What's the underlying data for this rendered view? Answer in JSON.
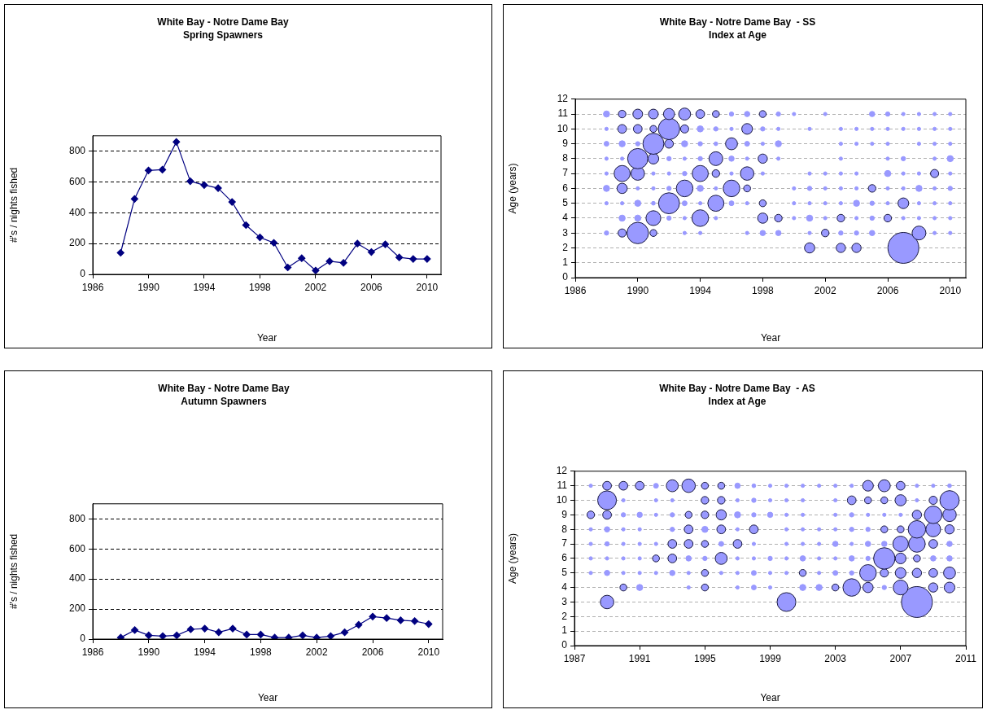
{
  "chart_data": [
    {
      "type": "line",
      "title": "White Bay - Notre Dame Bay",
      "subtitle": "Spring Spawners",
      "xlabel": "Year",
      "ylabel": "#'s / nights fished",
      "marker": "diamond",
      "line_style": "solid",
      "grid": "y",
      "series": [
        {
          "color": "#000080",
          "x": [
            1988,
            1989,
            1990,
            1991,
            1992,
            1993,
            1994,
            1995,
            1996,
            1997,
            1998,
            1999,
            2000,
            2001,
            2002,
            2003,
            2004,
            2005,
            2006,
            2007,
            2008,
            2009,
            2010
          ],
          "values": [
            140,
            490,
            675,
            680,
            860,
            605,
            580,
            560,
            470,
            320,
            240,
            205,
            45,
            105,
            25,
            85,
            75,
            200,
            145,
            195,
            110,
            100,
            100
          ]
        }
      ],
      "xlim": [
        1986,
        2011
      ],
      "xticks": [
        1986,
        1990,
        1994,
        1998,
        2002,
        2006,
        2010
      ],
      "ylim": [
        0,
        900
      ],
      "yticks": [
        0,
        200,
        400,
        600,
        800
      ]
    },
    {
      "type": "bubble",
      "title": "White Bay - Notre Dame Bay  - SS",
      "subtitle": "Index at Age",
      "xlabel": "Year",
      "ylabel": "Age (years)",
      "grid": "y",
      "series": [
        {
          "color": "#9999ff",
          "x": [
            1988,
            1989,
            1990,
            1991,
            1992,
            1993,
            1994,
            1995,
            1996,
            1997,
            1998,
            1999,
            2000,
            2002,
            2005,
            2006,
            2007,
            2008,
            2009,
            2010
          ],
          "values": [
            11,
            11,
            11,
            11,
            11,
            11,
            11,
            11,
            11,
            11,
            11,
            11,
            11,
            11,
            11,
            11,
            11,
            11,
            11,
            11
          ],
          "sizes": [
            0.04,
            0.06,
            0.1,
            0.1,
            0.13,
            0.15,
            0.08,
            0.05,
            0.02,
            0.03,
            0.05,
            0.02,
            0.012,
            0.012,
            0.03,
            0.02,
            0.012,
            0.012,
            0.012,
            0.012
          ]
        },
        {
          "color": "#9999ff",
          "x": [
            1988,
            1989,
            1990,
            1991,
            1992,
            1993,
            1994,
            1995,
            1996,
            1997,
            1998,
            1999,
            2001,
            2003,
            2004,
            2005,
            2006,
            2007,
            2008,
            2009,
            2010
          ],
          "values": [
            10,
            10,
            10,
            10,
            10,
            10,
            10,
            10,
            10,
            10,
            10,
            10,
            10,
            10,
            10,
            10,
            10,
            10,
            10,
            10,
            10
          ],
          "sizes": [
            0.012,
            0.08,
            0.08,
            0.05,
            0.48,
            0.07,
            0.04,
            0.02,
            0.012,
            0.12,
            0.02,
            0.012,
            0.012,
            0.012,
            0.012,
            0.012,
            0.012,
            0.012,
            0.012,
            0.012,
            0.012
          ]
        },
        {
          "color": "#9999ff",
          "x": [
            1988,
            1989,
            1990,
            1991,
            1992,
            1993,
            1994,
            1995,
            1996,
            1997,
            1998,
            1999,
            2003,
            2004,
            2005,
            2006,
            2008,
            2009,
            2010
          ],
          "values": [
            9,
            9,
            9,
            9,
            9,
            9,
            9,
            9,
            9,
            9,
            9,
            9,
            9,
            9,
            9,
            9,
            9,
            9,
            9
          ],
          "sizes": [
            0.025,
            0.04,
            0.02,
            0.46,
            0.08,
            0.04,
            0.02,
            0.015,
            0.15,
            0.025,
            0.012,
            0.04,
            0.012,
            0.012,
            0.012,
            0.012,
            0.012,
            0.012,
            0.012
          ]
        },
        {
          "color": "#9999ff",
          "x": [
            1988,
            1989,
            1990,
            1991,
            1992,
            1993,
            1994,
            1995,
            1996,
            1997,
            1998,
            1999,
            2003,
            2006,
            2007,
            2009,
            2010
          ],
          "values": [
            8,
            8,
            8,
            8,
            8,
            8,
            8,
            8,
            8,
            8,
            8,
            8,
            8,
            8,
            8,
            8,
            8
          ],
          "sizes": [
            0.012,
            0.012,
            0.43,
            0.12,
            0.02,
            0.012,
            0.02,
            0.2,
            0.03,
            0.012,
            0.09,
            0.012,
            0.012,
            0.012,
            0.02,
            0.012,
            0.04
          ]
        },
        {
          "color": "#9999ff",
          "x": [
            1988,
            1989,
            1990,
            1991,
            1992,
            1993,
            1994,
            1995,
            1996,
            1997,
            1998,
            2001,
            2002,
            2003,
            2004,
            2006,
            2007,
            2008,
            2009,
            2010
          ],
          "values": [
            7,
            7,
            7,
            7,
            7,
            7,
            7,
            7,
            7,
            7,
            7,
            7,
            7,
            7,
            7,
            7,
            7,
            7,
            7,
            7
          ],
          "sizes": [
            0.012,
            0.27,
            0.19,
            0.012,
            0.012,
            0.02,
            0.27,
            0.06,
            0.012,
            0.19,
            0.012,
            0.012,
            0.012,
            0.012,
            0.012,
            0.04,
            0.012,
            0.012,
            0.07,
            0.012
          ]
        },
        {
          "color": "#9999ff",
          "x": [
            1988,
            1989,
            1990,
            1991,
            1992,
            1993,
            1994,
            1995,
            1996,
            1997,
            2000,
            2001,
            2002,
            2003,
            2004,
            2005,
            2006,
            2007,
            2008,
            2009,
            2010
          ],
          "values": [
            6,
            6,
            6,
            6,
            6,
            6,
            6,
            6,
            6,
            6,
            6,
            6,
            6,
            6,
            6,
            6,
            6,
            6,
            6,
            6,
            6
          ],
          "sizes": [
            0.04,
            0.11,
            0.012,
            0.012,
            0.02,
            0.29,
            0.04,
            0.012,
            0.29,
            0.05,
            0.012,
            0.02,
            0.012,
            0.012,
            0.012,
            0.06,
            0.012,
            0.012,
            0.04,
            0.012,
            0.02
          ]
        },
        {
          "color": "#9999ff",
          "x": [
            1988,
            1989,
            1990,
            1991,
            1992,
            1993,
            1994,
            1995,
            1996,
            1997,
            1998,
            2000,
            2001,
            2002,
            2003,
            2004,
            2005,
            2006,
            2007,
            2008,
            2009,
            2010
          ],
          "values": [
            5,
            5,
            5,
            5,
            5,
            5,
            5,
            5,
            5,
            5,
            5,
            5,
            5,
            5,
            5,
            5,
            5,
            5,
            5,
            5,
            5,
            5
          ],
          "sizes": [
            0.012,
            0.012,
            0.04,
            0.015,
            0.46,
            0.025,
            0.012,
            0.27,
            0.025,
            0.012,
            0.05,
            0.012,
            0.012,
            0.012,
            0.012,
            0.04,
            0.02,
            0.012,
            0.12,
            0.012,
            0.012,
            0.012
          ]
        },
        {
          "color": "#9999ff",
          "x": [
            1989,
            1990,
            1991,
            1992,
            1993,
            1994,
            1995,
            1998,
            1999,
            2000,
            2001,
            2002,
            2003,
            2004,
            2005,
            2006,
            2007,
            2008,
            2009,
            2010
          ],
          "values": [
            4,
            4,
            4,
            4,
            4,
            4,
            4,
            4,
            4,
            4,
            4,
            4,
            4,
            4,
            4,
            4,
            4,
            4,
            4,
            4
          ],
          "sizes": [
            0.04,
            0.04,
            0.23,
            0.02,
            0.012,
            0.29,
            0.012,
            0.11,
            0.06,
            0.012,
            0.04,
            0.012,
            0.06,
            0.012,
            0.02,
            0.06,
            0.012,
            0.012,
            0.012,
            0.012
          ]
        },
        {
          "color": "#9999ff",
          "x": [
            1988,
            1989,
            1990,
            1991,
            1993,
            1994,
            1997,
            1998,
            1999,
            2001,
            2002,
            2003,
            2004,
            2005,
            2008,
            2009,
            2010
          ],
          "values": [
            3,
            3,
            3,
            3,
            3,
            3,
            3,
            3,
            3,
            3,
            3,
            3,
            3,
            3,
            3,
            3,
            3
          ],
          "sizes": [
            0.02,
            0.07,
            0.48,
            0.05,
            0.012,
            0.012,
            0.012,
            0.03,
            0.03,
            0.012,
            0.06,
            0.02,
            0.02,
            0.03,
            0.2,
            0.012,
            0.012
          ]
        },
        {
          "color": "#9999ff",
          "x": [
            2001,
            2003,
            2004,
            2007
          ],
          "values": [
            2,
            2,
            2,
            2
          ],
          "sizes": [
            0.11,
            0.09,
            0.09,
            1
          ]
        }
      ],
      "xlim": [
        1986,
        2011
      ],
      "xticks": [
        1986,
        1990,
        1994,
        1998,
        2002,
        2006,
        2010
      ],
      "ylim": [
        0,
        12
      ],
      "yticks": [
        0,
        1,
        2,
        3,
        4,
        5,
        6,
        7,
        8,
        9,
        10,
        11,
        12
      ]
    },
    {
      "type": "line",
      "title": "White Bay - Notre Dame Bay",
      "subtitle": "Autumn Spawners",
      "xlabel": "Year",
      "ylabel": "#'s / nights fished",
      "marker": "diamond",
      "line_style": "solid",
      "grid": "y",
      "series": [
        {
          "color": "#000080",
          "x": [
            1988,
            1989,
            1990,
            1991,
            1992,
            1993,
            1994,
            1995,
            1996,
            1997,
            1998,
            1999,
            2000,
            2001,
            2002,
            2003,
            2004,
            2005,
            2006,
            2007,
            2008,
            2009,
            2010
          ],
          "values": [
            10,
            60,
            25,
            20,
            25,
            65,
            70,
            45,
            70,
            30,
            30,
            10,
            10,
            25,
            10,
            20,
            45,
            95,
            150,
            140,
            125,
            120,
            100
          ]
        }
      ],
      "xlim": [
        1986,
        2011
      ],
      "xticks": [
        1986,
        1990,
        1994,
        1998,
        2002,
        2006,
        2010
      ],
      "ylim": [
        0,
        900
      ],
      "yticks": [
        0,
        200,
        400,
        600,
        800
      ]
    },
    {
      "type": "bubble",
      "title": "White Bay - Notre Dame Bay  - AS",
      "subtitle": "Index at Age",
      "xlabel": "Year",
      "ylabel": "Age (years)",
      "grid": "y",
      "series": [
        {
          "color": "#9999ff",
          "x": [
            1988,
            1989,
            1990,
            1991,
            1992,
            1993,
            1994,
            1995,
            1996,
            1997,
            1998,
            1999,
            2000,
            2001,
            2002,
            2003,
            2004,
            2005,
            2006,
            2007,
            2008,
            2009,
            2010
          ],
          "values": [
            11,
            11,
            11,
            11,
            11,
            11,
            11,
            11,
            11,
            11,
            11,
            11,
            11,
            11,
            11,
            11,
            11,
            11,
            11,
            11,
            11,
            11,
            11
          ],
          "sizes": [
            0.012,
            0.08,
            0.08,
            0.08,
            0.025,
            0.15,
            0.19,
            0.05,
            0.05,
            0.03,
            0.015,
            0.012,
            0.012,
            0.012,
            0.012,
            0.012,
            0.012,
            0.12,
            0.15,
            0.08,
            0.012,
            0.012,
            0.015
          ]
        },
        {
          "color": "#9999ff",
          "x": [
            1989,
            1990,
            1992,
            1993,
            1995,
            1996,
            1997,
            1998,
            1999,
            2000,
            2001,
            2003,
            2004,
            2005,
            2006,
            2007,
            2008,
            2009,
            2010
          ],
          "values": [
            10,
            10,
            10,
            10,
            10,
            10,
            10,
            10,
            10,
            10,
            10,
            10,
            10,
            10,
            10,
            10,
            10,
            10,
            10
          ],
          "sizes": [
            0.37,
            0.012,
            0.012,
            0.012,
            0.06,
            0.06,
            0.012,
            0.02,
            0.012,
            0.012,
            0.012,
            0.012,
            0.08,
            0.05,
            0.05,
            0.13,
            0.012,
            0.07,
            0.39
          ]
        },
        {
          "color": "#9999ff",
          "x": [
            1988,
            1989,
            1990,
            1991,
            1992,
            1993,
            1994,
            1995,
            1996,
            1997,
            1998,
            1999,
            2000,
            2001,
            2003,
            2004,
            2005,
            2006,
            2007,
            2008,
            2009,
            2010
          ],
          "values": [
            9,
            9,
            9,
            9,
            9,
            9,
            9,
            9,
            9,
            9,
            9,
            9,
            9,
            9,
            9,
            9,
            9,
            9,
            9,
            9,
            9,
            9
          ],
          "sizes": [
            0.06,
            0.08,
            0.02,
            0.03,
            0.012,
            0.02,
            0.05,
            0.06,
            0.11,
            0.04,
            0.02,
            0.03,
            0.012,
            0.012,
            0.012,
            0.02,
            0.012,
            0.012,
            0.012,
            0.09,
            0.32,
            0.19
          ]
        },
        {
          "color": "#9999ff",
          "x": [
            1988,
            1989,
            1990,
            1991,
            1993,
            1994,
            1995,
            1996,
            1997,
            1998,
            2000,
            2001,
            2002,
            2003,
            2004,
            2005,
            2006,
            2007,
            2008,
            2009,
            2010
          ],
          "values": [
            8,
            8,
            8,
            8,
            8,
            8,
            8,
            8,
            8,
            8,
            8,
            8,
            8,
            8,
            8,
            8,
            8,
            8,
            8,
            8,
            8
          ],
          "sizes": [
            0.012,
            0.03,
            0.012,
            0.012,
            0.02,
            0.08,
            0.04,
            0.08,
            0.012,
            0.08,
            0.012,
            0.012,
            0.012,
            0.012,
            0.02,
            0.02,
            0.05,
            0.05,
            0.32,
            0.23,
            0.09
          ]
        },
        {
          "color": "#9999ff",
          "x": [
            1988,
            1989,
            1990,
            1991,
            1992,
            1993,
            1994,
            1995,
            1996,
            1997,
            1998,
            2000,
            2001,
            2002,
            2003,
            2004,
            2005,
            2006,
            2007,
            2008,
            2009,
            2010
          ],
          "values": [
            7,
            7,
            7,
            7,
            7,
            7,
            7,
            7,
            7,
            7,
            7,
            7,
            7,
            7,
            7,
            7,
            7,
            7,
            7,
            7,
            7,
            7
          ],
          "sizes": [
            0.012,
            0.02,
            0.012,
            0.012,
            0.012,
            0.08,
            0.08,
            0.05,
            0.025,
            0.08,
            0.012,
            0.012,
            0.012,
            0.012,
            0.03,
            0.012,
            0.03,
            0.03,
            0.25,
            0.29,
            0.08,
            0.03
          ]
        },
        {
          "color": "#9999ff",
          "x": [
            1988,
            1989,
            1990,
            1991,
            1992,
            1993,
            1994,
            1995,
            1996,
            1997,
            1998,
            1999,
            2000,
            2001,
            2002,
            2003,
            2004,
            2005,
            2006,
            2007,
            2008,
            2009,
            2010
          ],
          "values": [
            6,
            6,
            6,
            6,
            6,
            6,
            6,
            6,
            6,
            6,
            6,
            6,
            6,
            6,
            6,
            6,
            6,
            6,
            6,
            6,
            6,
            6,
            6
          ],
          "sizes": [
            0.012,
            0.012,
            0.012,
            0.012,
            0.05,
            0.08,
            0.03,
            0.02,
            0.15,
            0.012,
            0.012,
            0.02,
            0.012,
            0.03,
            0.012,
            0.012,
            0.03,
            0.02,
            0.48,
            0.12,
            0.05,
            0.03,
            0.03
          ]
        },
        {
          "color": "#9999ff",
          "x": [
            1988,
            1989,
            1990,
            1991,
            1992,
            1993,
            1994,
            1995,
            1996,
            1997,
            1998,
            1999,
            2000,
            2001,
            2002,
            2003,
            2004,
            2005,
            2006,
            2007,
            2008,
            2009,
            2010
          ],
          "values": [
            5,
            5,
            5,
            5,
            5,
            5,
            5,
            5,
            5,
            5,
            5,
            5,
            5,
            5,
            5,
            5,
            5,
            5,
            5,
            5,
            5,
            5,
            5
          ],
          "sizes": [
            0.012,
            0.03,
            0.012,
            0.012,
            0.012,
            0.03,
            0.012,
            0.05,
            0.012,
            0.012,
            0.025,
            0.012,
            0.012,
            0.05,
            0.012,
            0.025,
            0.02,
            0.29,
            0.07,
            0.12,
            0.09,
            0.08,
            0.15
          ]
        },
        {
          "color": "#9999ff",
          "x": [
            1990,
            1991,
            1994,
            1995,
            1997,
            1998,
            1999,
            2001,
            2002,
            2003,
            2004,
            2005,
            2006,
            2007,
            2009,
            2010
          ],
          "values": [
            4,
            4,
            4,
            4,
            4,
            4,
            4,
            4,
            4,
            4,
            4,
            4,
            4,
            4,
            4,
            4
          ],
          "sizes": [
            0.05,
            0.04,
            0.012,
            0.05,
            0.012,
            0.025,
            0.012,
            0.04,
            0.04,
            0.05,
            0.32,
            0.11,
            0.02,
            0.23,
            0.09,
            0.12
          ]
        },
        {
          "color": "#9999ff",
          "x": [
            1989,
            2000,
            2008
          ],
          "values": [
            3,
            3,
            3
          ],
          "sizes": [
            0.19,
            0.37,
            1
          ]
        }
      ],
      "xlim": [
        1987,
        2011
      ],
      "xticks": [
        1987,
        1991,
        1995,
        1999,
        2003,
        2007,
        2011
      ],
      "ylim": [
        0,
        12
      ],
      "yticks": [
        0,
        1,
        2,
        3,
        4,
        5,
        6,
        7,
        8,
        9,
        10,
        11,
        12
      ]
    }
  ]
}
